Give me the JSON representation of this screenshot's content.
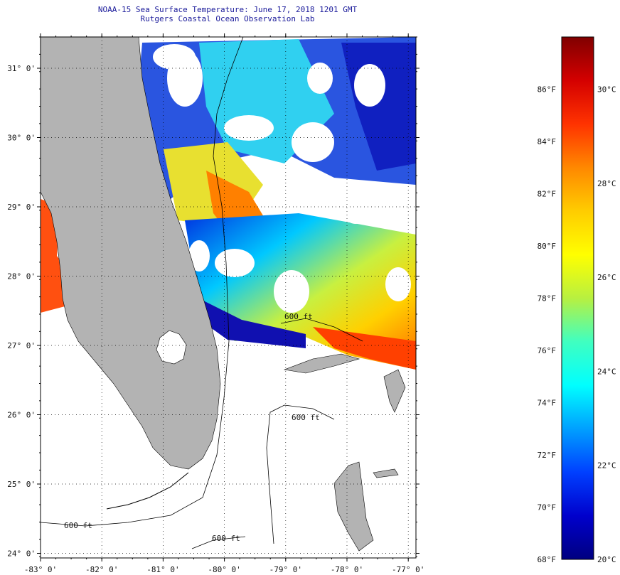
{
  "header": {
    "title_line1": "NOAA-15 Sea Surface Temperature:  June 17, 2018 1201 GMT",
    "title_line2": "Rutgers Coastal Ocean Observation Lab"
  },
  "map": {
    "lat_labels": [
      "31° 0'",
      "30° 0'",
      "29° 0'",
      "28° 0'",
      "27° 0'",
      "26° 0'",
      "25° 0'",
      "24° 0'"
    ],
    "lon_labels": [
      "-83° 0'",
      "-82° 0'",
      "-81° 0'",
      "-80° 0'",
      "-79° 0'",
      "-78° 0'",
      "-77° 0'"
    ],
    "contour_label": "600 ft",
    "colors": {
      "land": "#b3b3b3",
      "coastline": "#000000",
      "cloud_nodata": "#ffffff"
    }
  },
  "colorbar": {
    "f_labels": [
      "86°F",
      "84°F",
      "82°F",
      "80°F",
      "78°F",
      "76°F",
      "74°F",
      "72°F",
      "70°F",
      "68°F"
    ],
    "c_labels": [
      "30°C",
      "28°C",
      "26°C",
      "24°C",
      "22°C",
      "20°C"
    ],
    "range_f": [
      68,
      88
    ],
    "range_c": [
      20,
      31
    ],
    "colormap": [
      "#800000",
      "#d40000",
      "#ff3300",
      "#ff8800",
      "#ffcc00",
      "#ffff00",
      "#b8f040",
      "#40ffc0",
      "#00ffff",
      "#00a0ff",
      "#0040ff",
      "#0000cc",
      "#000080"
    ]
  }
}
